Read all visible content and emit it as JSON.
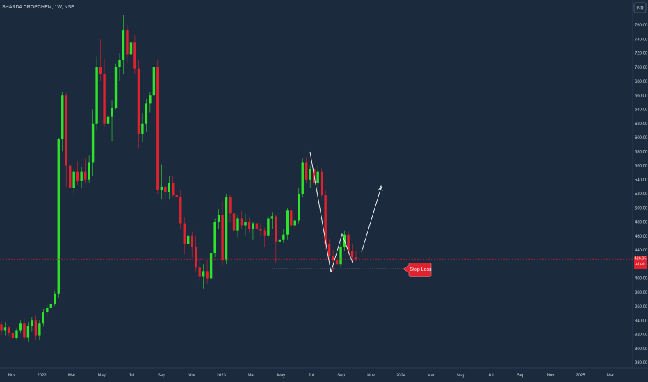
{
  "header": {
    "ticker": "SHARDA CROPCHEM, 1W, NSE",
    "currency": "INR"
  },
  "colors": {
    "background": "#1b2a3d",
    "up": "#2fe32a",
    "down": "#e0222e",
    "price_line": "#e0222e",
    "axis_text": "#d6dde6",
    "annotation": "#ffffff",
    "callout": "#e0222e"
  },
  "chart_data": {
    "type": "candlestick",
    "interval": "1W",
    "ylim": [
      270,
      770
    ],
    "y_ticks": [
      280,
      300,
      320,
      340,
      360,
      380,
      400,
      420,
      440,
      460,
      480,
      500,
      520,
      540,
      560,
      580,
      600,
      620,
      640,
      660,
      680,
      700,
      720,
      740,
      760
    ],
    "x_labels": [
      "Nov",
      "2022",
      "Mar",
      "May",
      "Jul",
      "Sep",
      "Nov",
      "2023",
      "Mar",
      "May",
      "Jul",
      "Sep",
      "Nov",
      "2024",
      "Mar",
      "May",
      "Jul",
      "Sep",
      "Nov",
      "2025",
      "Mar"
    ],
    "last_price": 426.95,
    "last_price_label": "426.95",
    "countdown_label": "1d 12h",
    "candles": [
      {
        "o": 334,
        "h": 339,
        "l": 318,
        "c": 326
      },
      {
        "o": 326,
        "h": 337,
        "l": 318,
        "c": 330
      },
      {
        "o": 330,
        "h": 332,
        "l": 317,
        "c": 322
      },
      {
        "o": 322,
        "h": 330,
        "l": 310,
        "c": 315
      },
      {
        "o": 315,
        "h": 329,
        "l": 313,
        "c": 326
      },
      {
        "o": 326,
        "h": 340,
        "l": 322,
        "c": 336
      },
      {
        "o": 336,
        "h": 343,
        "l": 311,
        "c": 316
      },
      {
        "o": 316,
        "h": 338,
        "l": 310,
        "c": 332
      },
      {
        "o": 332,
        "h": 345,
        "l": 324,
        "c": 340
      },
      {
        "o": 340,
        "h": 347,
        "l": 312,
        "c": 318
      },
      {
        "o": 318,
        "h": 340,
        "l": 312,
        "c": 336
      },
      {
        "o": 336,
        "h": 356,
        "l": 331,
        "c": 352
      },
      {
        "o": 352,
        "h": 362,
        "l": 344,
        "c": 358
      },
      {
        "o": 358,
        "h": 368,
        "l": 350,
        "c": 364
      },
      {
        "o": 364,
        "h": 382,
        "l": 360,
        "c": 378
      },
      {
        "o": 378,
        "h": 600,
        "l": 372,
        "c": 598
      },
      {
        "o": 598,
        "h": 665,
        "l": 580,
        "c": 660
      },
      {
        "o": 660,
        "h": 663,
        "l": 530,
        "c": 560
      },
      {
        "o": 560,
        "h": 570,
        "l": 505,
        "c": 528
      },
      {
        "o": 528,
        "h": 556,
        "l": 518,
        "c": 552
      },
      {
        "o": 552,
        "h": 566,
        "l": 532,
        "c": 538
      },
      {
        "o": 538,
        "h": 558,
        "l": 528,
        "c": 552
      },
      {
        "o": 552,
        "h": 570,
        "l": 535,
        "c": 540
      },
      {
        "o": 540,
        "h": 575,
        "l": 536,
        "c": 565
      },
      {
        "o": 565,
        "h": 640,
        "l": 545,
        "c": 620
      },
      {
        "o": 620,
        "h": 715,
        "l": 610,
        "c": 700
      },
      {
        "o": 700,
        "h": 740,
        "l": 680,
        "c": 690
      },
      {
        "o": 690,
        "h": 712,
        "l": 615,
        "c": 620
      },
      {
        "o": 620,
        "h": 635,
        "l": 598,
        "c": 630
      },
      {
        "o": 630,
        "h": 653,
        "l": 595,
        "c": 642
      },
      {
        "o": 642,
        "h": 705,
        "l": 640,
        "c": 700
      },
      {
        "o": 700,
        "h": 720,
        "l": 680,
        "c": 710
      },
      {
        "o": 710,
        "h": 775,
        "l": 690,
        "c": 753
      },
      {
        "o": 753,
        "h": 760,
        "l": 706,
        "c": 718
      },
      {
        "o": 718,
        "h": 748,
        "l": 700,
        "c": 735
      },
      {
        "o": 735,
        "h": 745,
        "l": 690,
        "c": 698
      },
      {
        "o": 698,
        "h": 710,
        "l": 585,
        "c": 605
      },
      {
        "o": 605,
        "h": 635,
        "l": 594,
        "c": 620
      },
      {
        "o": 620,
        "h": 655,
        "l": 608,
        "c": 648
      },
      {
        "o": 648,
        "h": 665,
        "l": 636,
        "c": 660
      },
      {
        "o": 660,
        "h": 715,
        "l": 650,
        "c": 700
      },
      {
        "o": 700,
        "h": 710,
        "l": 520,
        "c": 525
      },
      {
        "o": 525,
        "h": 562,
        "l": 512,
        "c": 530
      },
      {
        "o": 530,
        "h": 542,
        "l": 510,
        "c": 522
      },
      {
        "o": 522,
        "h": 545,
        "l": 512,
        "c": 535
      },
      {
        "o": 535,
        "h": 545,
        "l": 515,
        "c": 518
      },
      {
        "o": 518,
        "h": 528,
        "l": 505,
        "c": 516
      },
      {
        "o": 516,
        "h": 525,
        "l": 470,
        "c": 478
      },
      {
        "o": 478,
        "h": 486,
        "l": 435,
        "c": 448
      },
      {
        "o": 448,
        "h": 470,
        "l": 440,
        "c": 460
      },
      {
        "o": 460,
        "h": 466,
        "l": 430,
        "c": 445
      },
      {
        "o": 445,
        "h": 460,
        "l": 410,
        "c": 415
      },
      {
        "o": 415,
        "h": 428,
        "l": 395,
        "c": 402
      },
      {
        "o": 402,
        "h": 420,
        "l": 385,
        "c": 410
      },
      {
        "o": 410,
        "h": 425,
        "l": 392,
        "c": 400
      },
      {
        "o": 400,
        "h": 442,
        "l": 392,
        "c": 436
      },
      {
        "o": 436,
        "h": 485,
        "l": 430,
        "c": 480
      },
      {
        "o": 480,
        "h": 498,
        "l": 470,
        "c": 490
      },
      {
        "o": 490,
        "h": 510,
        "l": 418,
        "c": 425
      },
      {
        "o": 425,
        "h": 520,
        "l": 420,
        "c": 515
      },
      {
        "o": 515,
        "h": 518,
        "l": 480,
        "c": 492
      },
      {
        "o": 492,
        "h": 500,
        "l": 460,
        "c": 468
      },
      {
        "o": 468,
        "h": 490,
        "l": 458,
        "c": 485
      },
      {
        "o": 485,
        "h": 495,
        "l": 470,
        "c": 475
      },
      {
        "o": 475,
        "h": 492,
        "l": 460,
        "c": 480
      },
      {
        "o": 480,
        "h": 486,
        "l": 465,
        "c": 470
      },
      {
        "o": 470,
        "h": 480,
        "l": 455,
        "c": 478
      },
      {
        "o": 478,
        "h": 484,
        "l": 462,
        "c": 470
      },
      {
        "o": 470,
        "h": 478,
        "l": 460,
        "c": 468
      },
      {
        "o": 468,
        "h": 472,
        "l": 445,
        "c": 460
      },
      {
        "o": 460,
        "h": 488,
        "l": 458,
        "c": 485
      },
      {
        "o": 485,
        "h": 494,
        "l": 470,
        "c": 488
      },
      {
        "o": 488,
        "h": 490,
        "l": 422,
        "c": 452
      },
      {
        "o": 452,
        "h": 465,
        "l": 443,
        "c": 455
      },
      {
        "o": 455,
        "h": 470,
        "l": 450,
        "c": 462
      },
      {
        "o": 462,
        "h": 500,
        "l": 455,
        "c": 496
      },
      {
        "o": 496,
        "h": 512,
        "l": 470,
        "c": 475
      },
      {
        "o": 475,
        "h": 488,
        "l": 468,
        "c": 482
      },
      {
        "o": 482,
        "h": 528,
        "l": 478,
        "c": 520
      },
      {
        "o": 520,
        "h": 570,
        "l": 515,
        "c": 565
      },
      {
        "o": 565,
        "h": 572,
        "l": 535,
        "c": 540
      },
      {
        "o": 540,
        "h": 560,
        "l": 528,
        "c": 555
      },
      {
        "o": 555,
        "h": 575,
        "l": 534,
        "c": 535
      },
      {
        "o": 535,
        "h": 560,
        "l": 520,
        "c": 552
      },
      {
        "o": 552,
        "h": 556,
        "l": 515,
        "c": 518
      },
      {
        "o": 518,
        "h": 525,
        "l": 440,
        "c": 448
      },
      {
        "o": 448,
        "h": 456,
        "l": 425,
        "c": 432
      },
      {
        "o": 432,
        "h": 440,
        "l": 410,
        "c": 425
      },
      {
        "o": 425,
        "h": 438,
        "l": 418,
        "c": 420
      },
      {
        "o": 420,
        "h": 450,
        "l": 415,
        "c": 445
      },
      {
        "o": 445,
        "h": 468,
        "l": 438,
        "c": 462
      },
      {
        "o": 462,
        "h": 466,
        "l": 432,
        "c": 438
      },
      {
        "o": 438,
        "h": 448,
        "l": 425,
        "c": 430
      },
      {
        "o": 430,
        "h": 438,
        "l": 424,
        "c": 427
      }
    ],
    "annotations": {
      "stop_loss_label": "Stop Loss",
      "stop_loss_level": 413
    }
  }
}
